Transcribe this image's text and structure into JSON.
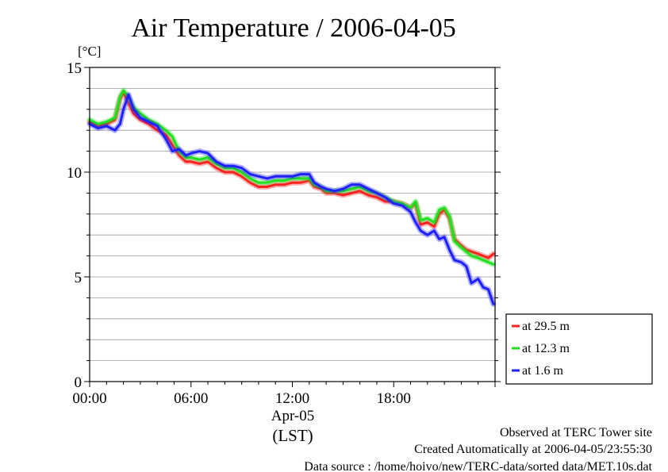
{
  "chart_data": {
    "type": "line",
    "title": "Air Temperature / 2006-04-05",
    "ylabel": "[°C]",
    "ylim": [
      0,
      15
    ],
    "y_ticks": [
      0,
      5,
      10,
      15
    ],
    "y_minor_step": 1,
    "xlim": [
      0,
      24
    ],
    "x_ticks": [
      0,
      6,
      12,
      18
    ],
    "x_tick_labels": [
      "00:00",
      "06:00",
      "12:00",
      "18:00"
    ],
    "date_label": "Apr-05",
    "xlabel": "(LST)",
    "grid": true,
    "legend_position": "right",
    "x": [
      0,
      0.5,
      1.0,
      1.5,
      1.8,
      2.0,
      2.3,
      2.6,
      3.0,
      3.5,
      4.0,
      4.5,
      4.9,
      5.3,
      5.7,
      6.0,
      6.5,
      7.0,
      7.5,
      8.0,
      8.5,
      9.0,
      9.5,
      10.0,
      10.5,
      11.0,
      11.5,
      12.0,
      12.5,
      13.0,
      13.3,
      13.7,
      14.0,
      14.5,
      15.0,
      15.5,
      16.0,
      16.5,
      17.0,
      17.5,
      18.0,
      18.5,
      19.0,
      19.3,
      19.6,
      20.0,
      20.4,
      20.7,
      21.0,
      21.3,
      21.6,
      22.0,
      22.3,
      22.6,
      23.0,
      23.3,
      23.6,
      23.9
    ],
    "series": [
      {
        "name": "at 29.5 m",
        "color": "#ff2020",
        "values": [
          12.4,
          12.2,
          12.3,
          12.5,
          13.5,
          13.8,
          13.3,
          12.8,
          12.5,
          12.3,
          12.0,
          11.8,
          11.3,
          10.8,
          10.5,
          10.5,
          10.4,
          10.5,
          10.2,
          10.0,
          10.0,
          9.8,
          9.5,
          9.3,
          9.3,
          9.4,
          9.4,
          9.5,
          9.5,
          9.6,
          9.3,
          9.2,
          9.0,
          9.0,
          8.9,
          9.0,
          9.1,
          8.9,
          8.8,
          8.6,
          8.6,
          8.5,
          8.3,
          8.5,
          7.5,
          7.6,
          7.4,
          8.0,
          8.2,
          7.8,
          6.8,
          6.5,
          6.3,
          6.2,
          6.1,
          6.0,
          5.9,
          6.1
        ]
      },
      {
        "name": "at 12.3 m",
        "color": "#20e020",
        "values": [
          12.5,
          12.3,
          12.4,
          12.6,
          13.6,
          13.9,
          13.6,
          13.1,
          12.8,
          12.5,
          12.3,
          12.0,
          11.7,
          11.0,
          10.7,
          10.7,
          10.6,
          10.7,
          10.4,
          10.2,
          10.2,
          10.0,
          9.7,
          9.5,
          9.5,
          9.6,
          9.6,
          9.7,
          9.7,
          9.7,
          9.4,
          9.3,
          9.1,
          9.1,
          9.1,
          9.2,
          9.3,
          9.1,
          9.0,
          8.8,
          8.6,
          8.5,
          8.3,
          8.6,
          7.7,
          7.8,
          7.6,
          8.2,
          8.3,
          7.9,
          6.7,
          6.4,
          6.2,
          6.0,
          5.9,
          5.8,
          5.7,
          5.6
        ]
      },
      {
        "name": "at 1.6 m",
        "color": "#2020ff",
        "values": [
          12.3,
          12.1,
          12.2,
          12.0,
          12.3,
          13.0,
          13.7,
          13.0,
          12.6,
          12.4,
          12.2,
          11.6,
          11.0,
          11.1,
          10.8,
          10.9,
          11.0,
          10.9,
          10.5,
          10.3,
          10.3,
          10.2,
          9.9,
          9.8,
          9.7,
          9.8,
          9.8,
          9.8,
          9.9,
          9.9,
          9.5,
          9.3,
          9.2,
          9.1,
          9.2,
          9.4,
          9.4,
          9.2,
          9.0,
          8.8,
          8.5,
          8.4,
          8.1,
          7.6,
          7.2,
          7.0,
          7.2,
          6.8,
          6.9,
          6.3,
          5.8,
          5.7,
          5.5,
          4.7,
          4.9,
          4.5,
          4.4,
          3.7
        ]
      }
    ]
  },
  "footer": {
    "observed": "Observed at TERC Tower site",
    "created": "Created Automatically at 2006-04-05/23:55:30",
    "source": "Data source : /home/hoivo/new/TERC-data/sorted  data/MET.10s.dat"
  }
}
